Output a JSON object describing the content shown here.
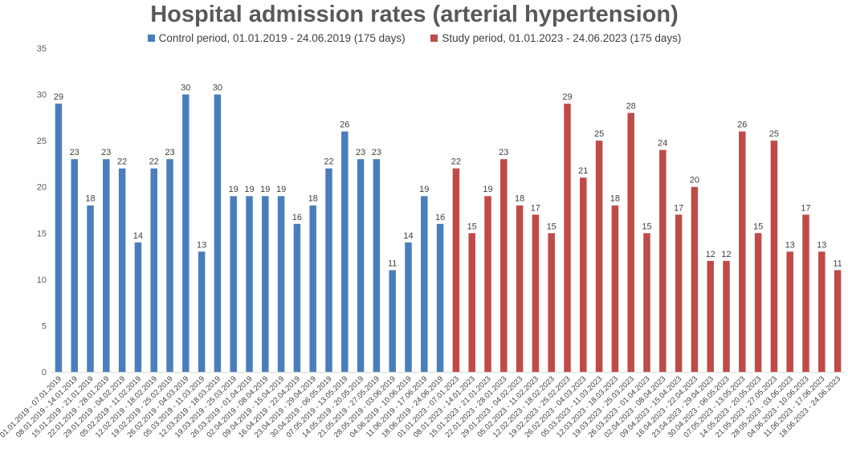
{
  "chart_data": {
    "type": "bar",
    "title": "Hospital admission rates (arterial hypertension)",
    "xlabel": "",
    "ylabel": "",
    "ylim": [
      0,
      35
    ],
    "yticks": [
      0,
      5,
      10,
      15,
      20,
      25,
      30,
      35
    ],
    "grid": false,
    "legend_position": "top",
    "colors": {
      "control": "#4a7ebb",
      "study": "#be4b48"
    },
    "series": [
      {
        "name": "Control period, 01.01.2019 - 24.06.2019 (175 days)",
        "key": "control",
        "categories": [
          "01.01.2019 - 07.01.2019",
          "08.01.2019 - 14.01.2019",
          "15.01.2019 - 21.01.2019",
          "22.01.2019 - 28.01.2019",
          "29.01.2019 - 04.02.2019",
          "05.02.2019 - 11.02.2019",
          "12.02.2019 - 18.02.2019",
          "19.02.2019 - 25.02.2019",
          "26.02.2019 - 04.03.2019",
          "05.03.2019 - 11.03.2019",
          "12.03.2019 - 18.03.2019",
          "19.03.2019 - 25.03.2019",
          "26.03.2019 - 01.04.2019",
          "02.04.2019 - 08.04.2019",
          "09.04.2019 - 15.04.2019",
          "16.04.2019 - 22.04.2019",
          "23.04.2019 - 29.04.2019",
          "30.04.2019 - 06.05.2019",
          "07.05.2019 - 13.05.2019",
          "14.05.2019 - 20.05.2019",
          "21.05.2019 - 27.05.2019",
          "28.05.2019 - 03.06.2019",
          "04.06.2019 - 10.06.2019",
          "11.06.2019 - 17.06.2019",
          "18.06.2019 - 24.06.2019"
        ],
        "values": [
          29,
          23,
          18,
          23,
          22,
          14,
          22,
          23,
          30,
          13,
          30,
          19,
          19,
          19,
          19,
          16,
          18,
          22,
          26,
          23,
          23,
          11,
          14,
          19,
          16
        ]
      },
      {
        "name": "Study period, 01.01.2023 - 24.06.2023 (175 days)",
        "key": "study",
        "categories": [
          "01.01.2023 - 07.01.2023",
          "08.01.2023 - 14.01.2023",
          "15.01.2023 - 21.01.2023",
          "22.01.2023 - 28.01.2023",
          "29.01.2023 - 04.02.2023",
          "05.02.2023 - 11.02.2023",
          "12.02.2023 - 18.02.2023",
          "19.02.2023 - 25.02.2023",
          "26.02.2023 - 04.03.2023",
          "05.03.2023 - 11.03.2023",
          "12.03.2023 - 18.03.2023",
          "19.03.2023 - 25.03.2023",
          "26.03.2023 - 01.04.2023",
          "02.04.2023 - 08.04.2023",
          "09.04.2023 - 15.04.2023",
          "16.04.2023 - 22.04.2023",
          "23.04.2023 - 29.04.2023",
          "30.04.2023 - 06.05.2023",
          "07.05.2023 - 13.05.2023",
          "14.05.2023 - 20.05.2023",
          "21.05.2023 - 27.05.2023",
          "28.05.2023 - 03.06.2023",
          "04.06.2023 - 10.06.2023",
          "11.06.2023 - 17.06.2023",
          "18.06.2023 - 24.06.2023"
        ],
        "values": [
          22,
          15,
          19,
          23,
          18,
          17,
          15,
          29,
          21,
          25,
          18,
          28,
          15,
          24,
          17,
          20,
          12,
          12,
          26,
          15,
          25,
          13,
          17,
          13,
          11
        ]
      }
    ]
  }
}
